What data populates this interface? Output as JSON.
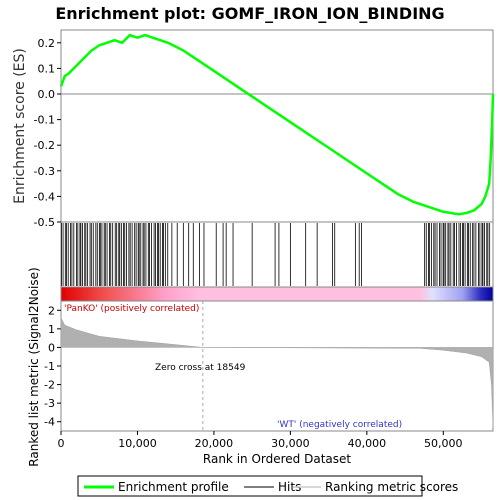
{
  "chart_data": {
    "type": "line",
    "title": "Enrichment plot: GOMF_IRON_ION_BINDING",
    "xlabel": "Rank in Ordered Dataset",
    "ylabel_top": "Enrichment score (ES)",
    "ylabel_bottom": "Ranked list metric (Signal2Noise)",
    "xlim": [
      0,
      56500
    ],
    "x_ticks": [
      0,
      10000,
      20000,
      30000,
      40000,
      50000
    ],
    "x_tick_labels": [
      "0",
      "10,000",
      "20,000",
      "30,000",
      "40,000",
      "50,000"
    ],
    "es_ylim": [
      -0.5,
      0.25
    ],
    "es_ticks": [
      0.2,
      0.1,
      0.0,
      -0.1,
      -0.2,
      -0.3,
      -0.4,
      -0.5
    ],
    "es_tick_labels": [
      "0.2",
      "0.1",
      "0.0",
      "-0.1",
      "-0.2",
      "-0.3",
      "-0.4",
      "-0.5"
    ],
    "metric_ylim": [
      -4.5,
      2.5
    ],
    "metric_ticks": [
      2,
      1,
      0,
      -1,
      -2,
      -3,
      -4
    ],
    "metric_tick_labels": [
      "2",
      "1",
      "0",
      "-1",
      "-2",
      "-3",
      "-4"
    ],
    "series": [
      {
        "name": "Enrichment profile",
        "color": "#00ff00",
        "x": [
          0,
          500,
          1000,
          2000,
          3000,
          4000,
          5000,
          6000,
          7000,
          8000,
          9000,
          10000,
          11000,
          12000,
          14000,
          16000,
          18000,
          20000,
          22000,
          24000,
          26000,
          28000,
          30000,
          32000,
          34000,
          36000,
          38000,
          40000,
          42000,
          44000,
          46000,
          48000,
          50000,
          51000,
          52000,
          53000,
          54000,
          55000,
          55500,
          56000,
          56200,
          56400,
          56500
        ],
        "y": [
          0.03,
          0.07,
          0.08,
          0.11,
          0.14,
          0.17,
          0.19,
          0.2,
          0.21,
          0.2,
          0.23,
          0.22,
          0.23,
          0.22,
          0.2,
          0.17,
          0.13,
          0.09,
          0.05,
          0.01,
          -0.03,
          -0.07,
          -0.11,
          -0.15,
          -0.19,
          -0.23,
          -0.27,
          -0.31,
          -0.35,
          -0.39,
          -0.42,
          -0.44,
          -0.46,
          -0.465,
          -0.47,
          -0.465,
          -0.455,
          -0.43,
          -0.4,
          -0.35,
          -0.25,
          -0.1,
          0.0
        ]
      }
    ],
    "hits_dense_ranges": [
      [
        0,
        14000
      ],
      [
        47500,
        56300
      ]
    ],
    "hits_sparse": [
      14500,
      15200,
      16000,
      16700,
      17300,
      18100,
      18700,
      20300,
      21200,
      21600,
      22500,
      25000,
      28000,
      28500,
      30000,
      32000,
      33500,
      35500,
      35800,
      38500,
      39000,
      39300
    ],
    "metric_profile": {
      "x": [
        0,
        500,
        2000,
        5000,
        10000,
        15000,
        18549,
        47000,
        50000,
        53000,
        55000,
        56000,
        56300,
        56500
      ],
      "y": [
        1.6,
        1.2,
        0.95,
        0.6,
        0.35,
        0.15,
        0.0,
        -0.05,
        -0.15,
        -0.3,
        -0.5,
        -0.8,
        -2.0,
        -4.3
      ]
    },
    "labels": {
      "pos": "'PanKO' (positively correlated)",
      "neg": "'WT' (negatively correlated)",
      "zero_cross": "Zero cross at 18549"
    },
    "zero_cross": 18549,
    "legend": {
      "placement": "bottom",
      "items": [
        "Enrichment profile",
        "Hits",
        "Ranking metric scores"
      ]
    },
    "colors": {
      "es_line": "#00ff00",
      "hits": "#000000",
      "pos_label": "#cc0000",
      "neg_label": "#3333cc",
      "metric_fill": "#b0b0b0"
    }
  }
}
